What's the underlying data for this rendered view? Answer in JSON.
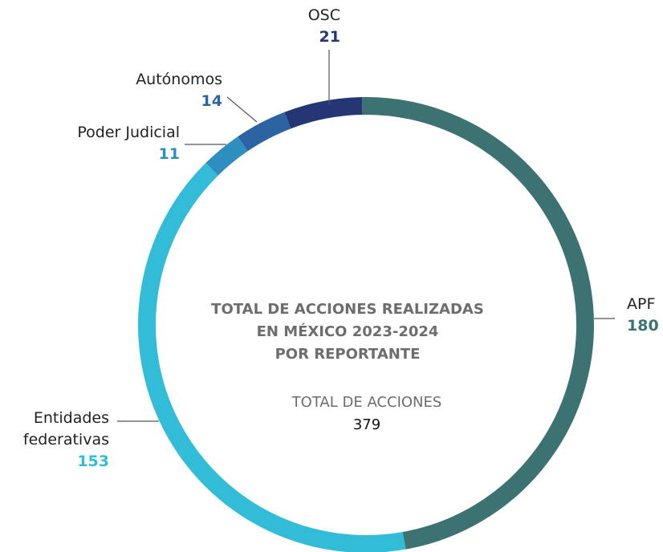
{
  "chart_data": {
    "type": "donut",
    "title": [
      "TOTAL DE ACCIONES REALIZADAS",
      "EN MÉXICO 2023-2024",
      "POR REPORTANTE"
    ],
    "center_label": "TOTAL DE ACCIONES",
    "total": 379,
    "categories": [
      "APF",
      "Entidades federativas",
      "Poder Judicial",
      "Autónomos",
      "OSC"
    ],
    "values": [
      180,
      153,
      11,
      14,
      21
    ],
    "colors": [
      "#3d7272",
      "#33bcd8",
      "#2e8ec0",
      "#2c63a3",
      "#253675"
    ]
  }
}
